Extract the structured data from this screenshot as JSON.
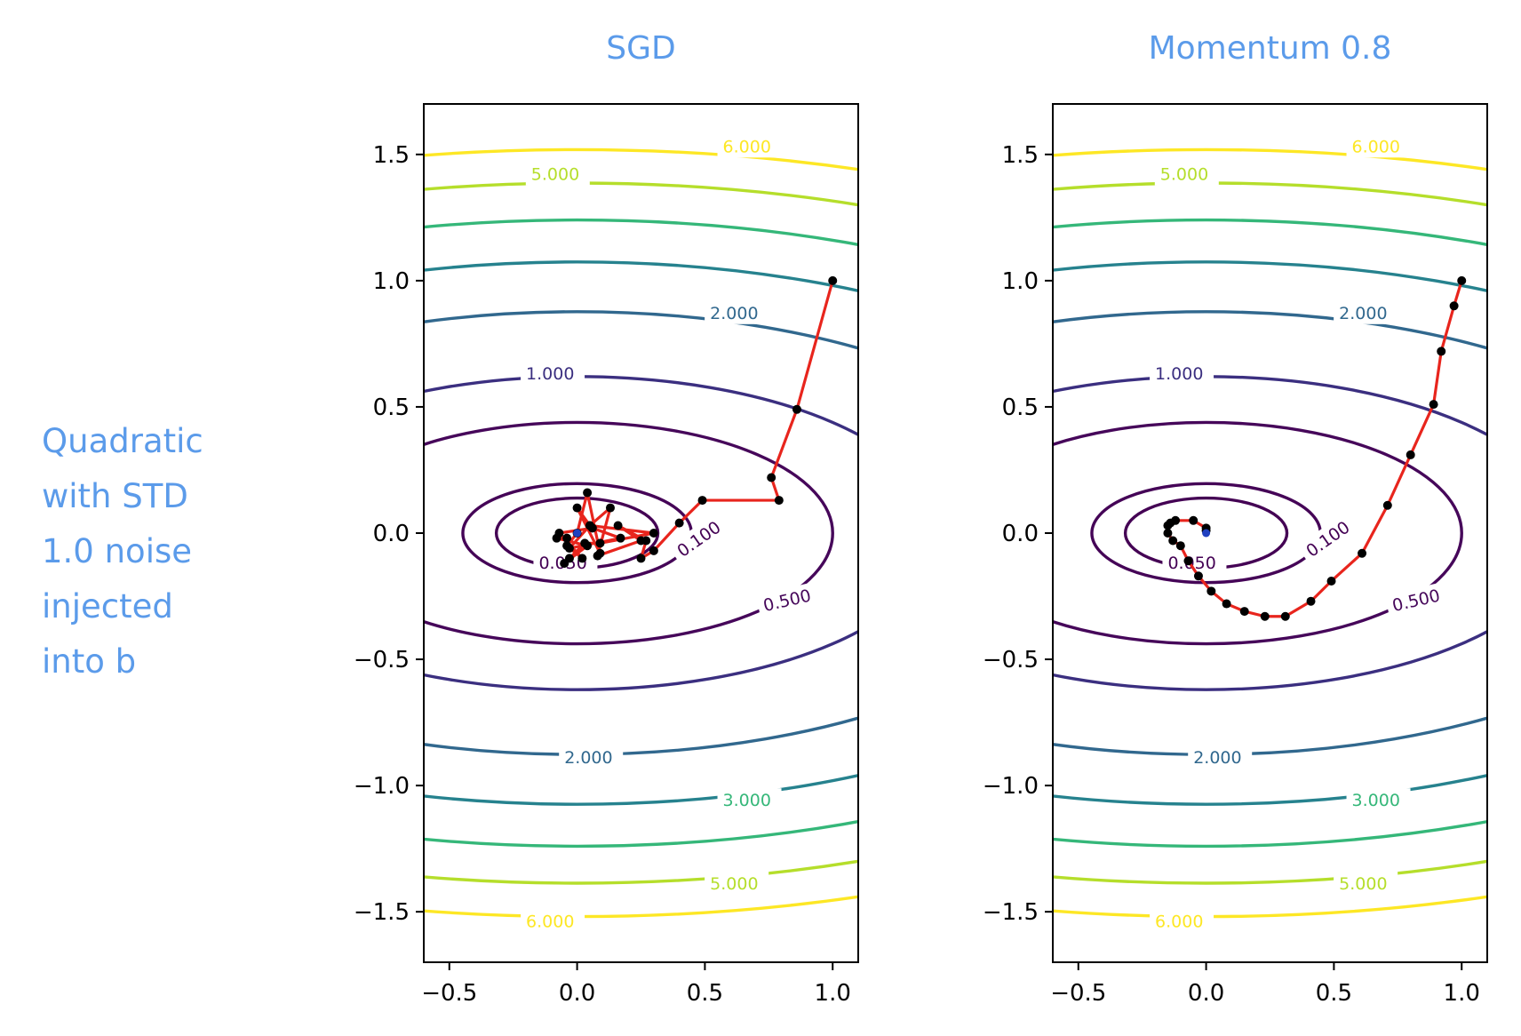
{
  "row_label": [
    "Quadratic",
    "with STD",
    "1.0 noise",
    "injected",
    "into b"
  ],
  "chart_data": [
    {
      "type": "line",
      "title": "SGD",
      "xlim": [
        -0.6,
        1.1
      ],
      "ylim": [
        -1.7,
        1.7
      ],
      "xticks": [
        -0.5,
        0.0,
        0.5,
        1.0
      ],
      "xtick_labels": [
        "−0.5",
        "0.0",
        "0.5",
        "1.0"
      ],
      "yticks": [
        1.5,
        1.0,
        0.5,
        0.0,
        -0.5,
        -1.0,
        -1.5
      ],
      "ytick_labels": [
        "1.5",
        "1.0",
        "0.5",
        "0.0",
        "−0.5",
        "−1.0",
        "−1.5"
      ],
      "contour_levels": [
        0.05,
        0.1,
        0.5,
        1.0,
        2.0,
        3.0,
        4.0,
        5.0,
        6.0
      ],
      "contour_labels": [
        {
          "text": "6.000",
          "x": 0.57,
          "y": 1.53,
          "color": "#fde725"
        },
        {
          "text": "5.000",
          "x": -0.18,
          "y": 1.42,
          "color": "#b5de2b"
        },
        {
          "text": "2.000",
          "x": 0.52,
          "y": 0.87,
          "color": "#31688e"
        },
        {
          "text": "1.000",
          "x": -0.2,
          "y": 0.63,
          "color": "#3b2f80"
        },
        {
          "text": "0.100",
          "x": 0.4,
          "y": -0.08,
          "color": "#440154",
          "rotate": -35
        },
        {
          "text": "0.050",
          "x": -0.15,
          "y": -0.12,
          "color": "#440154"
        },
        {
          "text": "0.500",
          "x": 0.73,
          "y": -0.29,
          "color": "#46075a",
          "rotate": -13
        },
        {
          "text": "2.000",
          "x": -0.05,
          "y": -0.89,
          "color": "#31688e"
        },
        {
          "text": "3.000",
          "x": 0.57,
          "y": -1.06,
          "color": "#35b779"
        },
        {
          "text": "5.000",
          "x": 0.52,
          "y": -1.39,
          "color": "#b5de2b"
        },
        {
          "text": "6.000",
          "x": -0.2,
          "y": -1.54,
          "color": "#fde725"
        }
      ],
      "series": [
        {
          "color": "#e8251d",
          "marker_color": "#000000",
          "x": [
            1.0,
            0.86,
            0.76,
            0.79,
            0.49,
            0.4,
            0.3,
            0.25,
            0.27,
            0.16,
            0.25,
            0.08,
            0.13,
            0.05,
            0.0,
            0.09,
            0.04,
            0.0,
            -0.04,
            0.02,
            -0.07,
            0.06,
            0.17,
            -0.03,
            0.05,
            0.3,
            0.09,
            0.03,
            -0.03,
            -0.05,
            0.04,
            -0.08,
            -0.04
          ],
          "y": [
            1.0,
            0.49,
            0.22,
            0.13,
            0.13,
            0.04,
            -0.07,
            -0.1,
            -0.03,
            0.03,
            -0.03,
            -0.09,
            0.1,
            0.03,
            0.1,
            -0.08,
            0.16,
            0.0,
            -0.05,
            -0.1,
            0.0,
            0.02,
            -0.02,
            -0.06,
            0.03,
            0.0,
            -0.04,
            -0.04,
            -0.1,
            -0.12,
            -0.05,
            -0.02,
            -0.02
          ]
        }
      ],
      "optimum": {
        "x": 0.0,
        "y": 0.0,
        "color": "#2040c0"
      }
    },
    {
      "type": "line",
      "title": "Momentum 0.8",
      "xlim": [
        -0.6,
        1.1
      ],
      "ylim": [
        -1.7,
        1.7
      ],
      "xticks": [
        -0.5,
        0.0,
        0.5,
        1.0
      ],
      "xtick_labels": [
        "−0.5",
        "0.0",
        "0.5",
        "1.0"
      ],
      "yticks": [
        1.5,
        1.0,
        0.5,
        0.0,
        -0.5,
        -1.0,
        -1.5
      ],
      "ytick_labels": [
        "1.5",
        "1.0",
        "0.5",
        "0.0",
        "−0.5",
        "−1.0",
        "−1.5"
      ],
      "contour_levels": [
        0.05,
        0.1,
        0.5,
        1.0,
        2.0,
        3.0,
        4.0,
        5.0,
        6.0
      ],
      "contour_labels": [
        {
          "text": "6.000",
          "x": 0.57,
          "y": 1.53,
          "color": "#fde725"
        },
        {
          "text": "5.000",
          "x": -0.18,
          "y": 1.42,
          "color": "#b5de2b"
        },
        {
          "text": "2.000",
          "x": 0.52,
          "y": 0.87,
          "color": "#31688e"
        },
        {
          "text": "1.000",
          "x": -0.2,
          "y": 0.63,
          "color": "#3b2f80"
        },
        {
          "text": "0.100",
          "x": 0.4,
          "y": -0.08,
          "color": "#440154",
          "rotate": -35
        },
        {
          "text": "0.050",
          "x": -0.15,
          "y": -0.12,
          "color": "#440154"
        },
        {
          "text": "0.500",
          "x": 0.73,
          "y": -0.29,
          "color": "#46075a",
          "rotate": -13
        },
        {
          "text": "2.000",
          "x": -0.05,
          "y": -0.89,
          "color": "#31688e"
        },
        {
          "text": "3.000",
          "x": 0.57,
          "y": -1.06,
          "color": "#35b779"
        },
        {
          "text": "5.000",
          "x": 0.52,
          "y": -1.39,
          "color": "#b5de2b"
        },
        {
          "text": "6.000",
          "x": -0.2,
          "y": -1.54,
          "color": "#fde725"
        }
      ],
      "series": [
        {
          "color": "#e8251d",
          "marker_color": "#000000",
          "x": [
            1.0,
            0.97,
            0.92,
            0.89,
            0.8,
            0.71,
            0.61,
            0.49,
            0.41,
            0.31,
            0.23,
            0.15,
            0.08,
            0.02,
            -0.03,
            -0.07,
            -0.1,
            -0.13,
            -0.15,
            -0.15,
            -0.14,
            -0.12,
            -0.05,
            0.0,
            0.0
          ],
          "y": [
            1.0,
            0.9,
            0.72,
            0.51,
            0.31,
            0.11,
            -0.08,
            -0.19,
            -0.27,
            -0.33,
            -0.33,
            -0.31,
            -0.28,
            -0.23,
            -0.17,
            -0.11,
            -0.05,
            -0.03,
            0.0,
            0.03,
            0.04,
            0.05,
            0.05,
            0.02,
            0.01
          ]
        }
      ],
      "optimum": {
        "x": 0.0,
        "y": 0.0,
        "color": "#2040c0"
      }
    }
  ]
}
